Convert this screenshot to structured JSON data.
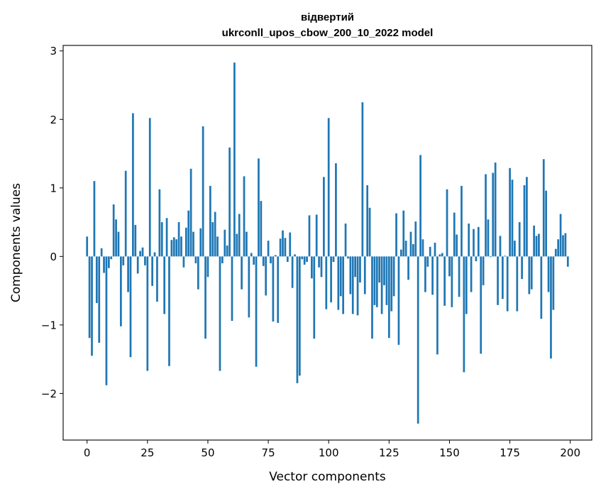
{
  "chart_data": {
    "type": "bar",
    "title_line1": "відвертий",
    "title_line2": "ukrconll_upos_cbow_200_10_2022 model",
    "xlabel": "Vector components",
    "ylabel": "Components values",
    "xlim": [
      -9.9,
      208.9
    ],
    "ylim": [
      -2.68,
      3.08
    ],
    "xticks": [
      0,
      25,
      50,
      75,
      100,
      125,
      150,
      175,
      200
    ],
    "yticks": [
      -2,
      -1,
      0,
      1,
      2,
      3
    ],
    "ytick_labels": [
      "−2",
      "−1",
      "0",
      "1",
      "2",
      "3"
    ],
    "bar_color": "#1f77b4",
    "grid": false,
    "x": [
      0,
      1,
      2,
      3,
      4,
      5,
      6,
      7,
      8,
      9,
      10,
      11,
      12,
      13,
      14,
      15,
      16,
      17,
      18,
      19,
      20,
      21,
      22,
      23,
      24,
      25,
      26,
      27,
      28,
      29,
      30,
      31,
      32,
      33,
      34,
      35,
      36,
      37,
      38,
      39,
      40,
      41,
      42,
      43,
      44,
      45,
      46,
      47,
      48,
      49,
      50,
      51,
      52,
      53,
      54,
      55,
      56,
      57,
      58,
      59,
      60,
      61,
      62,
      63,
      64,
      65,
      66,
      67,
      68,
      69,
      70,
      71,
      72,
      73,
      74,
      75,
      76,
      77,
      78,
      79,
      80,
      81,
      82,
      83,
      84,
      85,
      86,
      87,
      88,
      89,
      90,
      91,
      92,
      93,
      94,
      95,
      96,
      97,
      98,
      99,
      100,
      101,
      102,
      103,
      104,
      105,
      106,
      107,
      108,
      109,
      110,
      111,
      112,
      113,
      114,
      115,
      116,
      117,
      118,
      119,
      120,
      121,
      122,
      123,
      124,
      125,
      126,
      127,
      128,
      129,
      130,
      131,
      132,
      133,
      134,
      135,
      136,
      137,
      138,
      139,
      140,
      141,
      142,
      143,
      144,
      145,
      146,
      147,
      148,
      149,
      150,
      151,
      152,
      153,
      154,
      155,
      156,
      157,
      158,
      159,
      160,
      161,
      162,
      163,
      164,
      165,
      166,
      167,
      168,
      169,
      170,
      171,
      172,
      173,
      174,
      175,
      176,
      177,
      178,
      179,
      180,
      181,
      182,
      183,
      184,
      185,
      186,
      187,
      188,
      189,
      190,
      191,
      192,
      193,
      194,
      195,
      196,
      197,
      198,
      199
    ],
    "values": [
      0.29,
      -1.19,
      -1.45,
      1.1,
      -0.68,
      -1.26,
      0.12,
      -0.24,
      -1.88,
      -0.17,
      -0.04,
      0.76,
      0.54,
      0.36,
      -1.02,
      -0.13,
      1.25,
      -0.52,
      -1.47,
      2.09,
      0.46,
      -0.25,
      0.08,
      0.13,
      -0.13,
      -1.67,
      2.02,
      -0.43,
      0.06,
      -0.66,
      0.98,
      0.5,
      -0.84,
      0.56,
      -1.6,
      0.24,
      0.28,
      0.25,
      0.5,
      0.29,
      -0.16,
      0.42,
      0.67,
      1.28,
      0.36,
      -0.1,
      -0.48,
      0.41,
      1.9,
      -1.2,
      -0.3,
      1.03,
      0.5,
      0.65,
      0.29,
      -1.67,
      -0.1,
      0.39,
      0.16,
      1.59,
      -0.94,
      2.83,
      0.33,
      0.62,
      -0.48,
      1.17,
      0.36,
      -0.89,
      0.05,
      -0.12,
      -1.61,
      1.43,
      0.81,
      -0.14,
      -0.57,
      0.23,
      -0.1,
      -0.95,
      0.02,
      -0.97,
      0.26,
      0.38,
      0.27,
      -0.08,
      0.35,
      -0.46,
      0.03,
      -1.85,
      -1.74,
      -0.04,
      -0.12,
      -0.08,
      0.6,
      -0.32,
      -1.2,
      0.61,
      -0.16,
      -0.3,
      1.16,
      -0.77,
      2.02,
      -0.67,
      -0.08,
      1.36,
      -0.78,
      -0.58,
      -0.84,
      0.48,
      -0.03,
      -0.55,
      -0.84,
      -0.3,
      -0.86,
      -0.38,
      2.25,
      -0.55,
      1.04,
      0.71,
      -1.2,
      -0.71,
      -0.74,
      -0.38,
      -0.84,
      -0.42,
      -0.71,
      -1.19,
      -0.8,
      -0.58,
      0.63,
      -1.29,
      0.1,
      0.67,
      0.23,
      -0.34,
      0.36,
      0.18,
      0.51,
      -2.44,
      1.48,
      0.25,
      -0.52,
      -0.15,
      0.14,
      -0.56,
      0.2,
      -1.43,
      0.03,
      0.05,
      -0.72,
      0.98,
      -0.29,
      -0.74,
      0.64,
      0.32,
      -0.59,
      1.03,
      -1.69,
      -0.84,
      0.48,
      -0.52,
      0.4,
      -0.07,
      0.43,
      -1.42,
      -0.42,
      1.2,
      0.54,
      -0.01,
      1.22,
      1.37,
      -0.71,
      0.3,
      -0.62,
      0.01,
      -0.8,
      1.29,
      1.12,
      0.23,
      -0.8,
      0.5,
      -0.33,
      1.04,
      1.16,
      -0.55,
      -0.48,
      0.45,
      0.3,
      0.33,
      -0.91,
      1.42,
      0.96,
      -0.52,
      -1.49,
      -0.78,
      0.11,
      0.25,
      0.62,
      0.31,
      0.34,
      -0.15
    ]
  }
}
